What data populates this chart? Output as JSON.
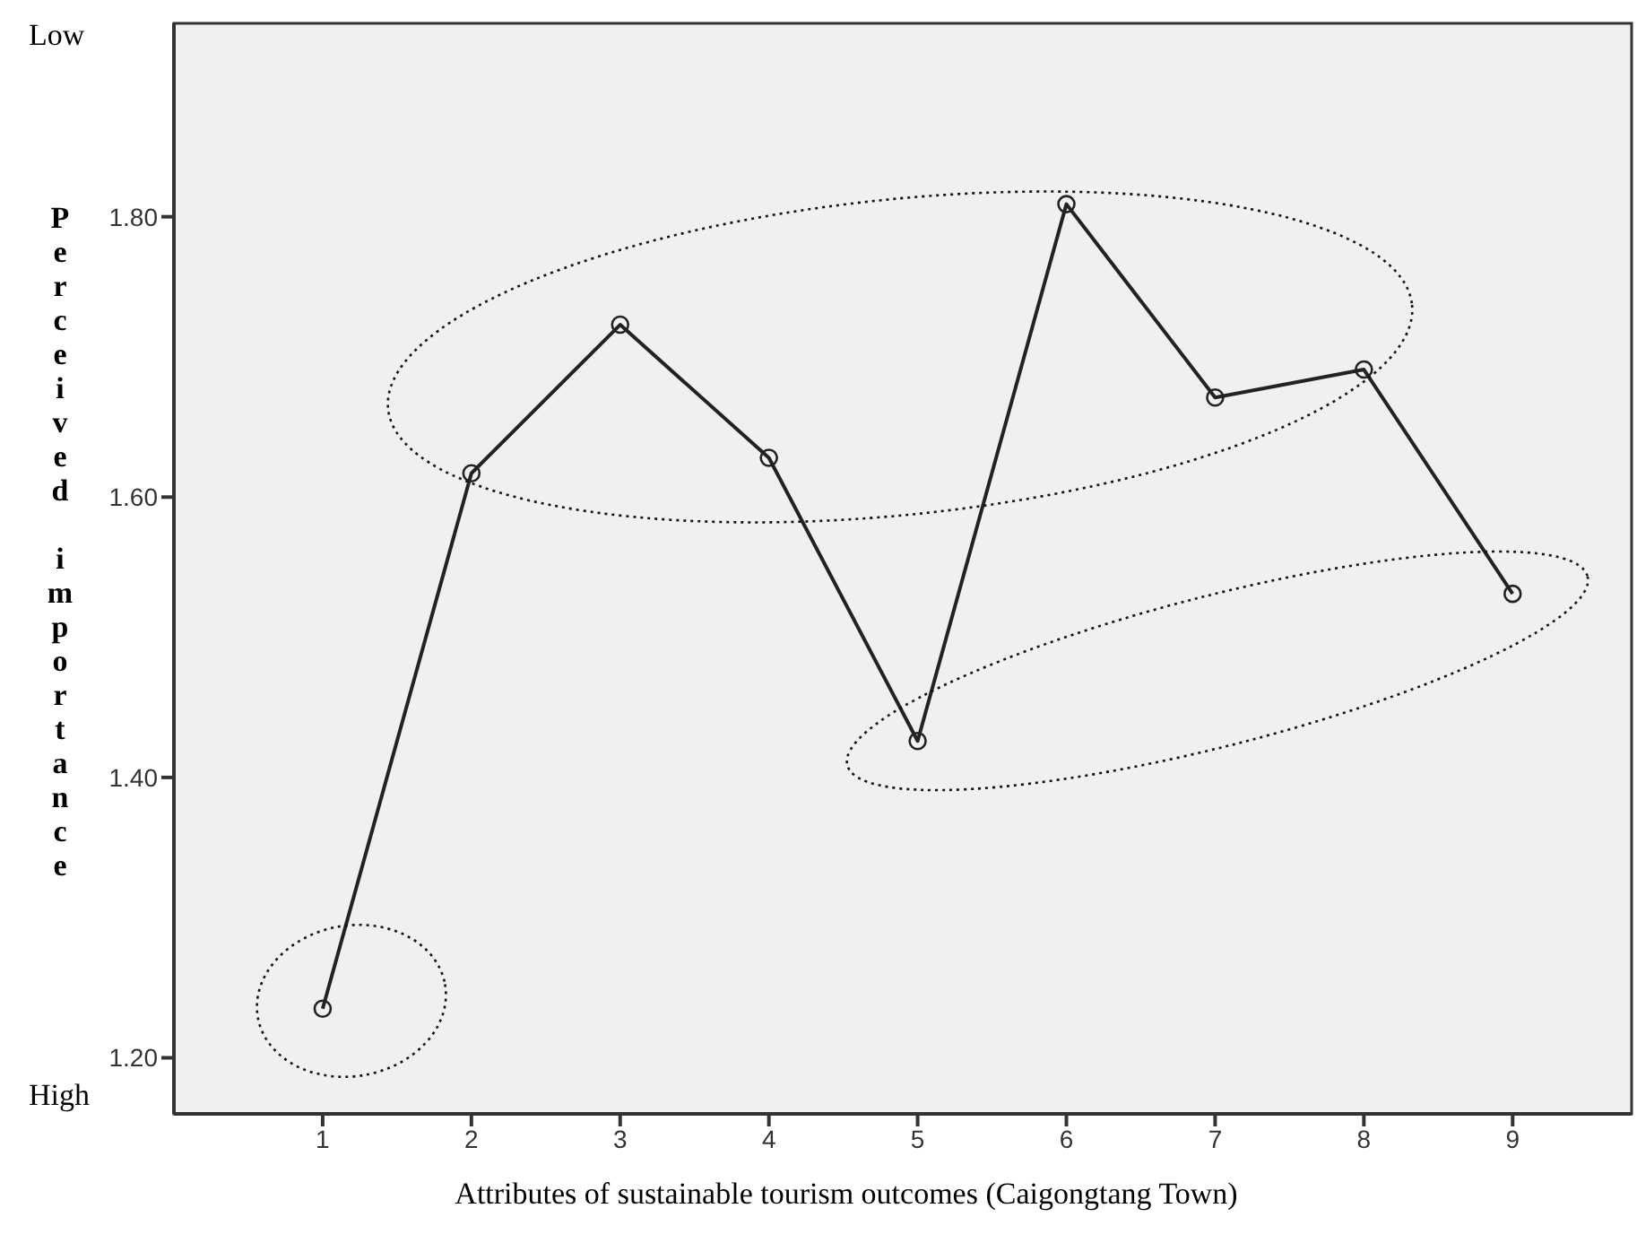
{
  "chart_data": {
    "type": "line",
    "xlabel": "Attributes of sustainable tourism outcomes (Caigongtang Town)",
    "ylabel": "Perceived importance",
    "annotations": [
      "Low",
      "High"
    ],
    "x": [
      1,
      2,
      3,
      4,
      5,
      6,
      7,
      8,
      9
    ],
    "series": [
      {
        "color": "#222222",
        "values": [
          1.235,
          1.617,
          1.723,
          1.628,
          1.426,
          1.809,
          1.671,
          1.691,
          1.531
        ]
      }
    ],
    "xlim": [
      0,
      9.8
    ],
    "xticks": [
      1,
      2,
      3,
      4,
      5,
      6,
      7,
      8,
      9
    ],
    "ylim": [
      1.16,
      1.938
    ],
    "yticks": [
      {
        "value": 1.2,
        "label": "1.20"
      },
      {
        "value": 1.4,
        "label": "1.40"
      },
      {
        "value": 1.6,
        "label": "1.60"
      },
      {
        "value": 1.8,
        "label": "1.80"
      }
    ],
    "grid": false,
    "marker": "circle",
    "line_style": "solid"
  }
}
